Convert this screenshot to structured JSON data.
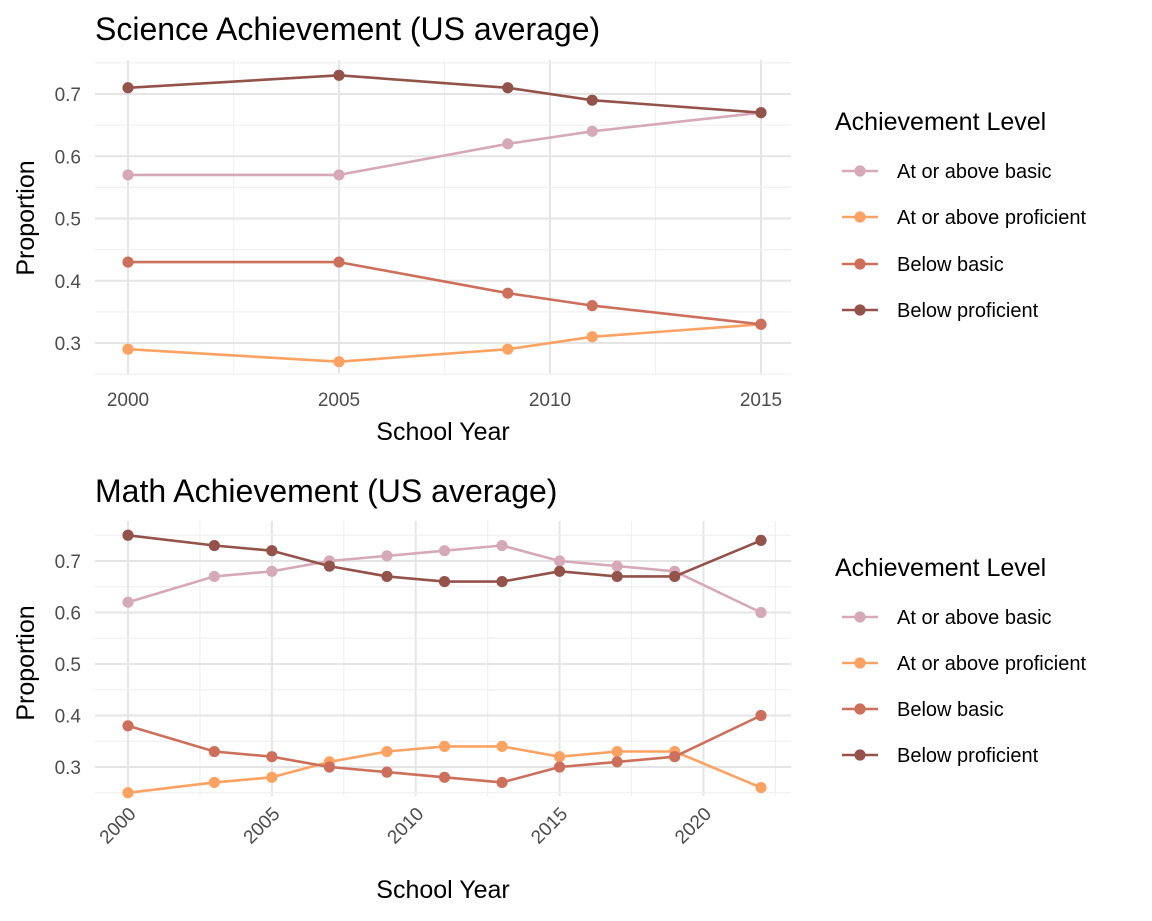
{
  "chart_data": [
    {
      "type": "line",
      "title": "Science Achievement (US average)",
      "xlabel": "School Year",
      "ylabel": "Proportion",
      "xlim": [
        2000,
        2015
      ],
      "ylim": [
        0.25,
        0.75
      ],
      "x_ticks": [
        "2000",
        "2005",
        "2010",
        "2015"
      ],
      "y_ticks": [
        "0.3",
        "0.4",
        "0.5",
        "0.6",
        "0.7"
      ],
      "x_tick_rotation": "none",
      "grid": true,
      "legend_position": "right",
      "legend_title": "Achievement Level",
      "series": [
        {
          "name": "At or above basic",
          "color": "#d6a9b9",
          "x": [
            2000,
            2005,
            2009,
            2011,
            2015
          ],
          "values": [
            0.57,
            0.57,
            0.62,
            0.64,
            0.67
          ]
        },
        {
          "name": "At or above proficient",
          "color": "#fca262",
          "x": [
            2000,
            2005,
            2009,
            2011,
            2015
          ],
          "values": [
            0.29,
            0.27,
            0.29,
            0.31,
            0.33
          ]
        },
        {
          "name": "Below basic",
          "color": "#cc705c",
          "x": [
            2000,
            2005,
            2009,
            2011,
            2015
          ],
          "values": [
            0.43,
            0.43,
            0.38,
            0.36,
            0.33
          ]
        },
        {
          "name": "Below proficient",
          "color": "#93534a",
          "x": [
            2000,
            2005,
            2009,
            2011,
            2015
          ],
          "values": [
            0.71,
            0.73,
            0.71,
            0.69,
            0.67
          ]
        }
      ]
    },
    {
      "type": "line",
      "title": "Math Achievement (US average)",
      "xlabel": "School Year",
      "ylabel": "Proportion",
      "xlim": [
        2000,
        2022
      ],
      "ylim": [
        0.25,
        0.75
      ],
      "x_ticks": [
        "2000",
        "2005",
        "2010",
        "2015",
        "2020"
      ],
      "y_ticks": [
        "0.3",
        "0.4",
        "0.5",
        "0.6",
        "0.7"
      ],
      "x_tick_rotation": "45-degree",
      "grid": true,
      "legend_position": "right",
      "legend_title": "Achievement Level",
      "series": [
        {
          "name": "At or above basic",
          "color": "#d6a9b9",
          "x": [
            2000,
            2003,
            2005,
            2007,
            2009,
            2011,
            2013,
            2015,
            2017,
            2019,
            2022
          ],
          "values": [
            0.62,
            0.67,
            0.68,
            0.7,
            0.71,
            0.72,
            0.73,
            0.7,
            0.69,
            0.68,
            0.6
          ]
        },
        {
          "name": "At or above proficient",
          "color": "#fca262",
          "x": [
            2000,
            2003,
            2005,
            2007,
            2009,
            2011,
            2013,
            2015,
            2017,
            2019,
            2022
          ],
          "values": [
            0.25,
            0.27,
            0.28,
            0.31,
            0.33,
            0.34,
            0.34,
            0.32,
            0.33,
            0.33,
            0.26
          ]
        },
        {
          "name": "Below basic",
          "color": "#cc705c",
          "x": [
            2000,
            2003,
            2005,
            2007,
            2009,
            2011,
            2013,
            2015,
            2017,
            2019,
            2022
          ],
          "values": [
            0.38,
            0.33,
            0.32,
            0.3,
            0.29,
            0.28,
            0.27,
            0.3,
            0.31,
            0.32,
            0.4
          ]
        },
        {
          "name": "Below proficient",
          "color": "#93534a",
          "x": [
            2000,
            2003,
            2005,
            2007,
            2009,
            2011,
            2013,
            2015,
            2017,
            2019,
            2022
          ],
          "values": [
            0.75,
            0.73,
            0.72,
            0.69,
            0.67,
            0.66,
            0.66,
            0.68,
            0.67,
            0.67,
            0.74
          ]
        }
      ]
    }
  ]
}
